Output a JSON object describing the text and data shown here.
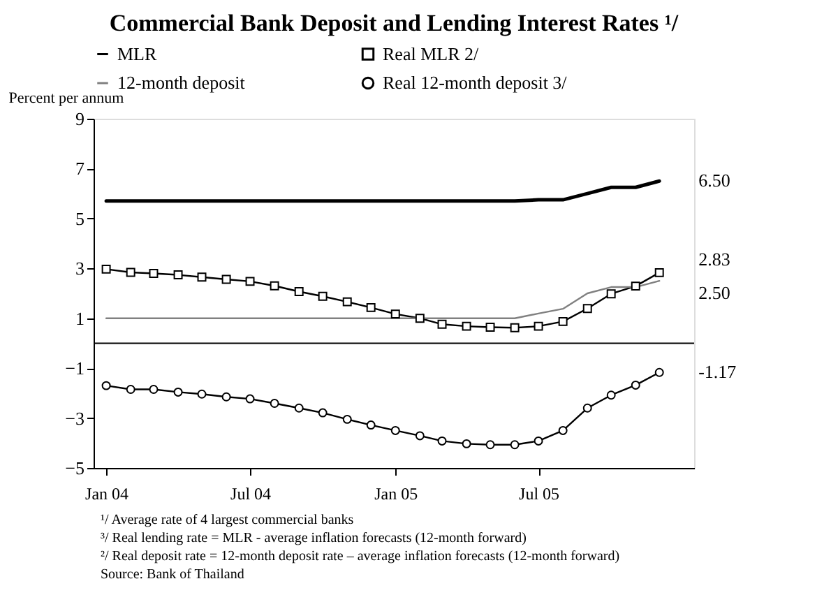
{
  "chart_data": {
    "type": "line",
    "title": "Commercial Bank Deposit and Lending Interest Rates ¹/",
    "ylabel": "Percent per annum",
    "x": [
      "2004-01",
      "2004-02",
      "2004-03",
      "2004-04",
      "2004-05",
      "2004-06",
      "2004-07",
      "2004-08",
      "2004-09",
      "2004-10",
      "2004-11",
      "2004-12",
      "2005-01",
      "2005-02",
      "2005-03",
      "2005-04",
      "2005-05",
      "2005-06",
      "2005-07",
      "2005-08",
      "2005-09",
      "2005-10",
      "2005-11",
      "2005-12"
    ],
    "series": [
      {
        "name": "MLR",
        "color": "#000000",
        "marker": "none",
        "values": [
          5.7,
          5.7,
          5.7,
          5.7,
          5.7,
          5.7,
          5.7,
          5.7,
          5.7,
          5.7,
          5.7,
          5.7,
          5.7,
          5.7,
          5.7,
          5.7,
          5.7,
          5.7,
          5.75,
          5.75,
          6.0,
          6.25,
          6.25,
          6.5
        ]
      },
      {
        "name": "Real MLR 2/",
        "color": "#000000",
        "marker": "square",
        "values": [
          2.97,
          2.84,
          2.8,
          2.74,
          2.65,
          2.56,
          2.48,
          2.3,
          2.07,
          1.88,
          1.66,
          1.43,
          1.17,
          1.0,
          0.76,
          0.68,
          0.64,
          0.62,
          0.68,
          0.87,
          1.39,
          1.98,
          2.29,
          2.83
        ]
      },
      {
        "name": "12-month deposit",
        "color": "#808080",
        "marker": "none",
        "values": [
          1.0,
          1.0,
          1.0,
          1.0,
          1.0,
          1.0,
          1.0,
          1.0,
          1.0,
          1.0,
          1.0,
          1.0,
          1.0,
          1.0,
          1.0,
          1.0,
          1.0,
          1.0,
          1.19,
          1.38,
          2.0,
          2.25,
          2.25,
          2.5
        ]
      },
      {
        "name": "Real 12-month deposit 3/",
        "color": "#000000",
        "marker": "circle",
        "values": [
          -1.7,
          -1.85,
          -1.85,
          -1.96,
          -2.04,
          -2.15,
          -2.23,
          -2.41,
          -2.6,
          -2.79,
          -3.05,
          -3.28,
          -3.5,
          -3.71,
          -3.92,
          -4.03,
          -4.07,
          -4.07,
          -3.92,
          -3.5,
          -2.6,
          -2.08,
          -1.68,
          -1.17
        ]
      }
    ],
    "xlim": [
      "2003-12-16",
      "2006-01-14"
    ],
    "xticks": [
      {
        "value": "2004-01",
        "label": "Jan 04"
      },
      {
        "value": "2004-07",
        "label": "Jul 04"
      },
      {
        "value": "2005-01",
        "label": "Jan 05"
      },
      {
        "value": "2005-07",
        "label": "Jul 05"
      }
    ],
    "ylim": [
      -5,
      9
    ],
    "yticks": [
      -5,
      -3,
      -1,
      1,
      3,
      5,
      7,
      9
    ],
    "ref_lines": [
      {
        "axis": "y",
        "value": 0,
        "label": null,
        "color": "#000000"
      }
    ],
    "grid": false,
    "legend": "top",
    "annotations": [
      {
        "text": "6.50",
        "x": "2005-12",
        "y": 6.5
      },
      {
        "text": "2.83",
        "x": "2005-12",
        "y": 2.83
      },
      {
        "text": "2.50",
        "x": "2005-12",
        "y": 2.5
      },
      {
        "text": "-1.17",
        "x": "2005-12",
        "y": -1.17
      },
      "¹/ Average rate of 4 largest commercial banks",
      "³/ Real lending rate  = MLR - average inflation forecasts (12-month forward)",
      "²/ Real deposit rate  = 12-month deposit rate – average inflation forecasts (12-month forward)",
      "Source:  Bank of Thailand"
    ]
  }
}
